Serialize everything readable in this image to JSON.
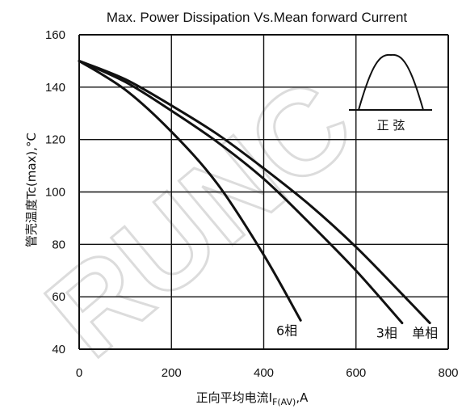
{
  "chart_data": {
    "type": "line",
    "title": "Max. Power Dissipation Vs.Mean forward Current",
    "xlabel": "正向平均电流I",
    "xlabel_subscript": "F(AV)",
    "xlabel_suffix": ",A",
    "ylabel": "管壳温度Tc(max),°C",
    "xlim": [
      0,
      800
    ],
    "ylim": [
      40,
      160
    ],
    "x_ticks": [
      0,
      200,
      400,
      600,
      800
    ],
    "y_ticks": [
      40,
      60,
      80,
      100,
      120,
      140,
      160
    ],
    "grid": true,
    "watermark": "RUNC",
    "inset_label": "正  弦",
    "series": [
      {
        "name": "单相",
        "x": [
          0,
          100,
          200,
          300,
          400,
          500,
          600,
          700,
          760
        ],
        "y": [
          150,
          143,
          133,
          122,
          109,
          95,
          79,
          61,
          50
        ]
      },
      {
        "name": "3相",
        "x": [
          0,
          100,
          200,
          300,
          400,
          500,
          600,
          700
        ],
        "y": [
          150,
          142,
          131,
          119,
          105,
          88,
          70,
          50
        ]
      },
      {
        "name": "6相",
        "x": [
          0,
          100,
          200,
          300,
          400,
          480
        ],
        "y": [
          150,
          139,
          123,
          103,
          76,
          51
        ]
      }
    ]
  },
  "colors": {
    "curve": "#111111",
    "grid": "#111111",
    "watermark": "#dcdcdc"
  }
}
